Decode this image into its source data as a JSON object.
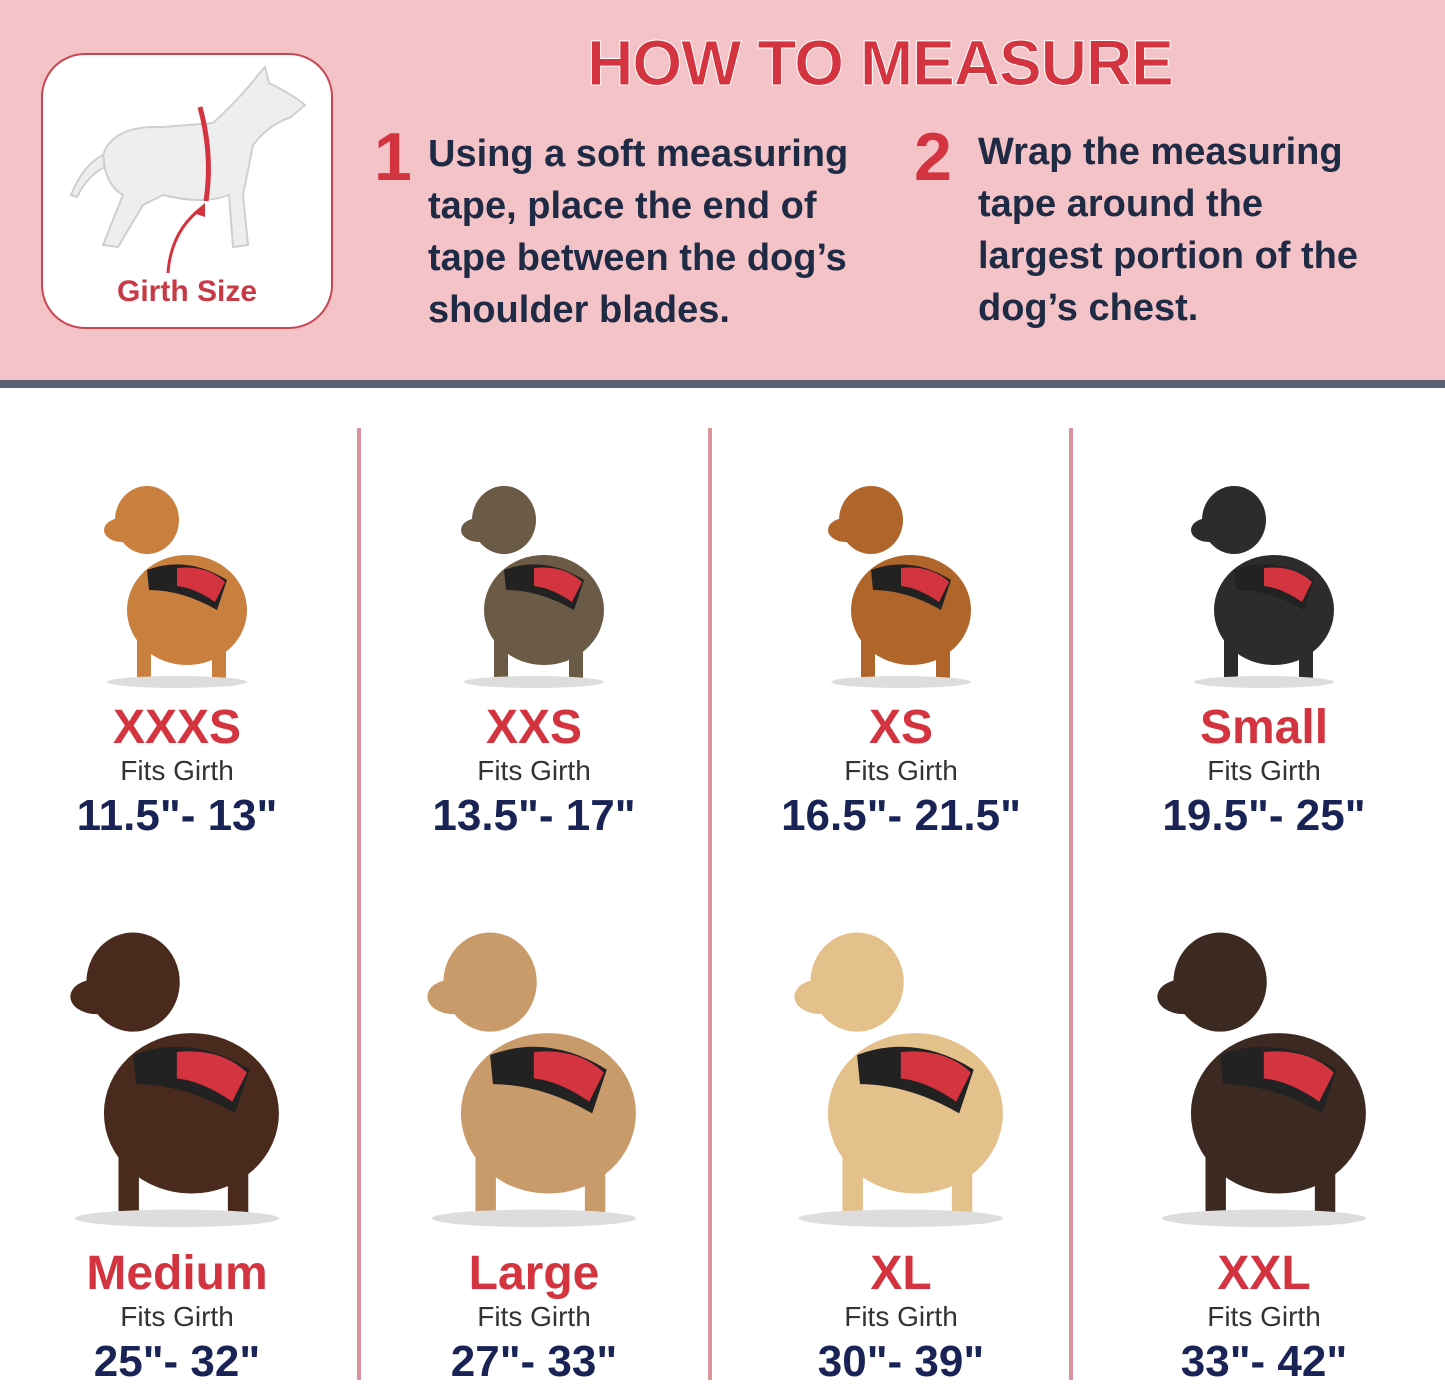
{
  "header": {
    "title": "HOW TO MEASURE",
    "girth_label": "Girth Size",
    "steps": [
      {
        "num": "1",
        "text": "Using a soft measuring\ntape, place the end of\ntape between the dog’s\nshoulder blades."
      },
      {
        "num": "2",
        "text": "Wrap the measuring\ntape around the\nlargest portion of the\ndog’s chest."
      }
    ]
  },
  "colors": {
    "pink": "#f4c3c7",
    "red": "#d3343f",
    "navy": "#1a2355",
    "band": "#5a6274"
  },
  "sizes": [
    {
      "name": "XXXS",
      "fits": "Fits Girth",
      "range": "11.5\"- 13\"",
      "fur": "#c9803f"
    },
    {
      "name": "XXS",
      "fits": "Fits Girth",
      "range": "13.5\"- 17\"",
      "fur": "#6b5a45"
    },
    {
      "name": "XS",
      "fits": "Fits Girth",
      "range": "16.5\"- 21.5\"",
      "fur": "#b0652a"
    },
    {
      "name": "Small",
      "fits": "Fits Girth",
      "range": "19.5\"- 25\"",
      "fur": "#2e2b2b"
    },
    {
      "name": "Medium",
      "fits": "Fits Girth",
      "range": "25\"- 32\"",
      "fur": "#4a2a1c"
    },
    {
      "name": "Large",
      "fits": "Fits Girth",
      "range": "27\"- 33\"",
      "fur": "#c99a6a"
    },
    {
      "name": "XL",
      "fits": "Fits Girth",
      "range": "30\"- 39\"",
      "fur": "#e4c08a"
    },
    {
      "name": "XXL",
      "fits": "Fits Girth",
      "range": "33\"- 42\"",
      "fur": "#3c2a22"
    }
  ]
}
